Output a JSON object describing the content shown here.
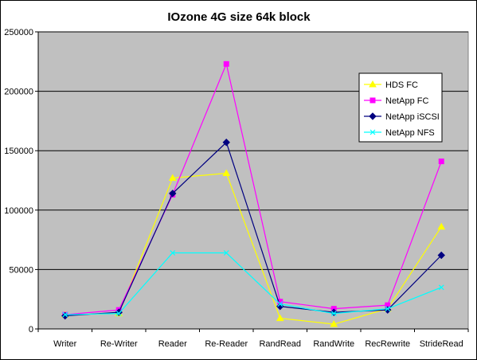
{
  "chart_data": {
    "type": "line",
    "title": "IOzone 4G size 64k block",
    "xlabel": "",
    "ylabel": "",
    "categories": [
      "Writer",
      "Re-Writer",
      "Reader",
      "Re-Reader",
      "RandRead",
      "RandWrite",
      "RecRewrite",
      "StrideRead"
    ],
    "ylim": [
      0,
      250000
    ],
    "yticks": [
      0,
      50000,
      100000,
      150000,
      200000,
      250000
    ],
    "ytick_labels": [
      "0",
      "50000",
      "100000",
      "150000",
      "200000",
      "250000"
    ],
    "grid": "horizontal major gridlines",
    "plot_background": "#c0c0c0",
    "legend_position": "right, inside plot",
    "series": [
      {
        "name": "HDS FC",
        "color": "#ffff00",
        "marker": "triangle",
        "values": [
          12000,
          13000,
          127000,
          131000,
          9000,
          4000,
          17000,
          86000
        ]
      },
      {
        "name": "NetApp FC",
        "color": "#ff00ff",
        "marker": "square",
        "values": [
          12000,
          16000,
          113000,
          223000,
          23000,
          17000,
          20000,
          141000
        ]
      },
      {
        "name": "NetApp iSCSI",
        "color": "#000080",
        "marker": "diamond",
        "values": [
          11000,
          14000,
          114000,
          157000,
          19000,
          14000,
          16000,
          62000
        ]
      },
      {
        "name": "NetApp NFS",
        "color": "#00ffff",
        "marker": "x",
        "values": [
          12000,
          13000,
          64000,
          64000,
          21000,
          13000,
          17000,
          35000
        ]
      }
    ]
  }
}
